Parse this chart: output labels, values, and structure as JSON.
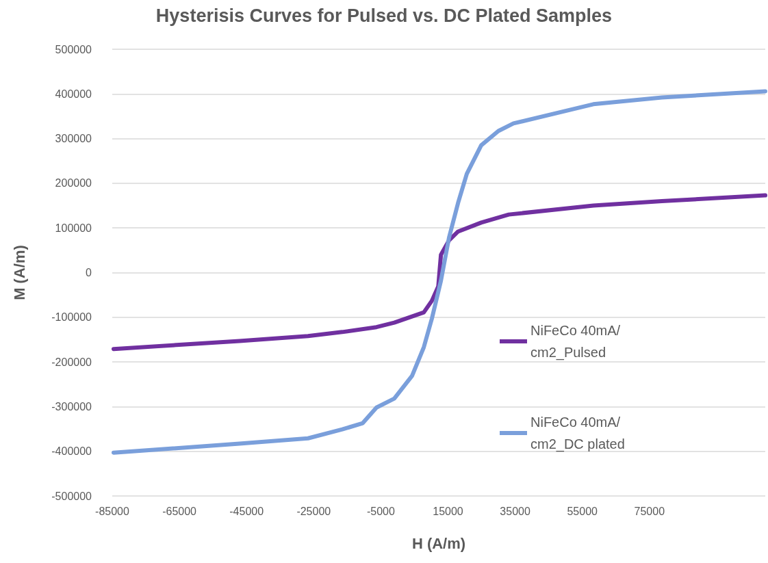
{
  "chart_data": {
    "type": "line",
    "title": "Hysterisis Curves for Pulsed vs. DC Plated Samples",
    "xlabel": "H (A/m)",
    "ylabel": "M (A/m)",
    "xlim": [
      -85000,
      109500
    ],
    "xticks": [
      -85000,
      -65000,
      -45000,
      -25000,
      -5000,
      15000,
      35000,
      55000,
      75000
    ],
    "ylim": [
      -500000,
      500000
    ],
    "yticks": [
      -500000,
      -400000,
      -300000,
      -200000,
      -100000,
      0,
      100000,
      200000,
      300000,
      400000,
      500000
    ],
    "grid": "y",
    "legend": "right",
    "marker": "none",
    "line_style": "solid",
    "series": [
      {
        "name": "NiFeCo 40mA/cm2_Pulsed",
        "color": "#7030a0",
        "x": [
          -84600,
          -47100,
          -26700,
          -16500,
          -6300,
          -1000,
          7800,
          10200,
          12100,
          12900,
          15300,
          18000,
          24900,
          33100,
          58300,
          78700,
          109500
        ],
        "values": [
          -171000,
          -153000,
          -142000,
          -133000,
          -122000,
          -112000,
          -89000,
          -63000,
          -31000,
          40000,
          72000,
          92000,
          112000,
          130000,
          150000,
          160000,
          173000
        ]
      },
      {
        "name": "NiFeCo 40mA/cm2_DC plated",
        "color": "#7a9fdb",
        "x": [
          -84600,
          -47100,
          -26700,
          -16500,
          -10400,
          -6300,
          -1000,
          4300,
          7800,
          10200,
          12900,
          15300,
          18000,
          20600,
          24900,
          30000,
          34500,
          58300,
          78700,
          109500
        ],
        "values": [
          -403000,
          -383000,
          -371000,
          -351000,
          -337000,
          -302000,
          -282000,
          -231000,
          -167000,
          -103000,
          -18000,
          78000,
          156000,
          221000,
          285000,
          317000,
          334000,
          377000,
          392000,
          406000
        ]
      }
    ]
  }
}
